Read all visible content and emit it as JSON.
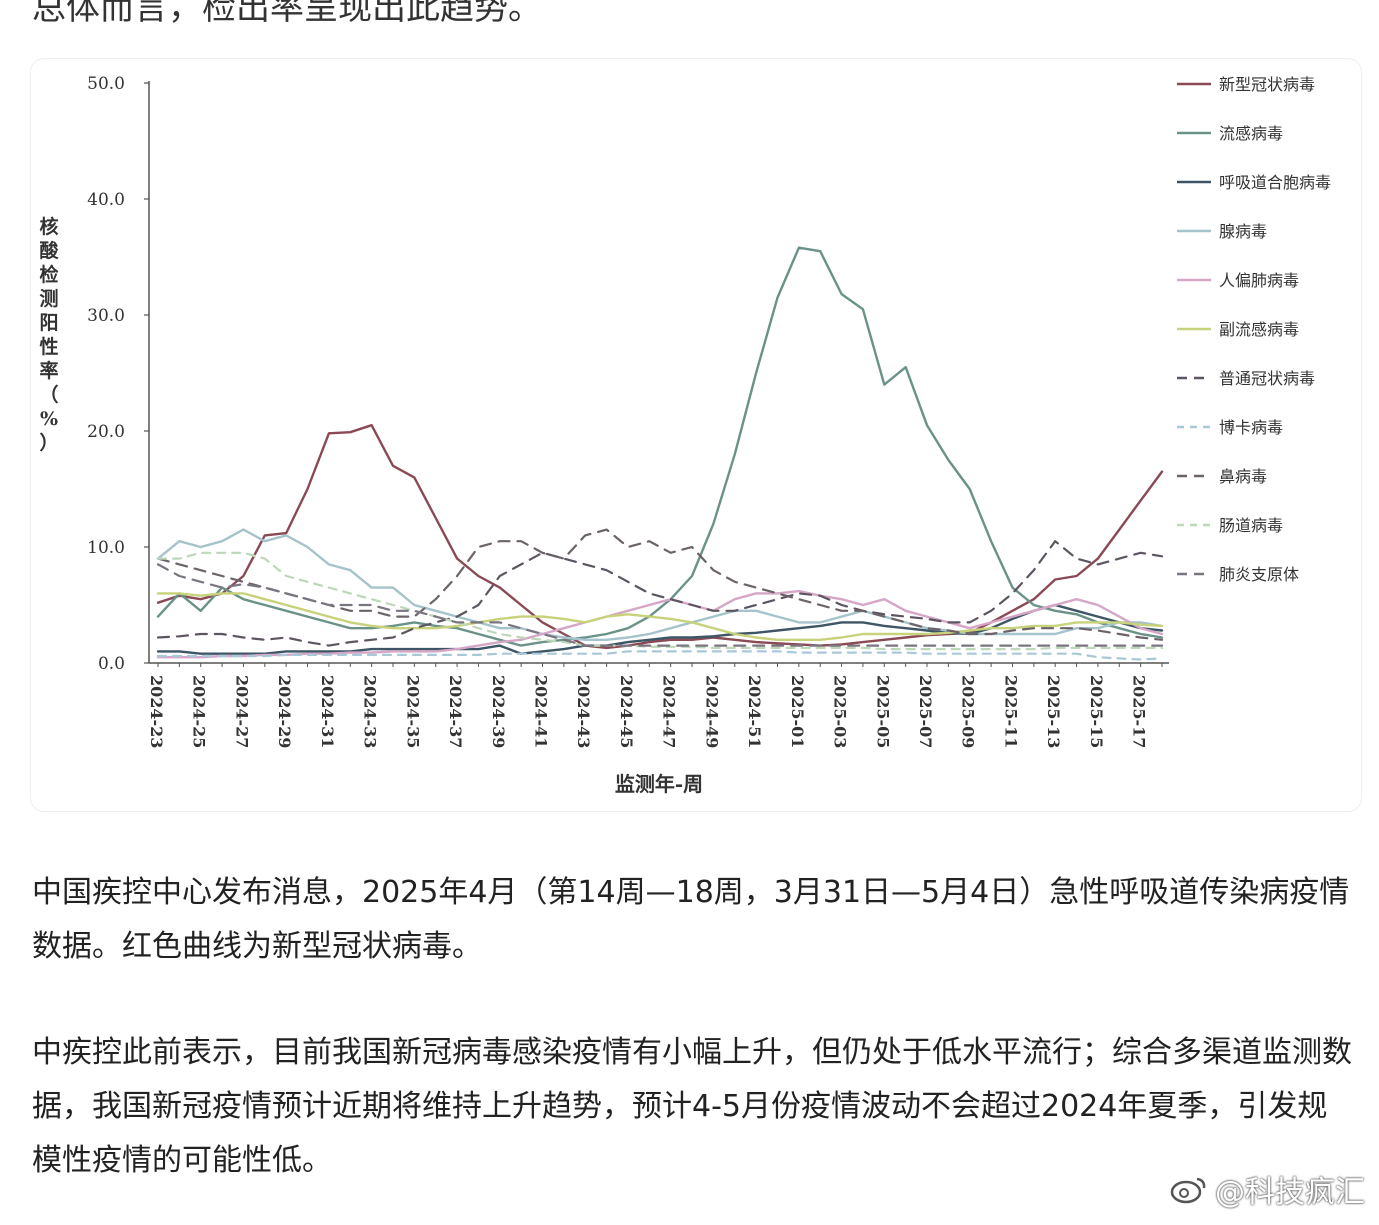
{
  "top_clipped_text": "总体而言，检出率呈现出此趋势。",
  "chart_data": {
    "type": "line",
    "title": "",
    "xlabel": "监测年-周",
    "ylabel": "核酸检测阳性率（%）",
    "ylim": [
      0,
      50
    ],
    "yticks": [
      "0.0",
      "10.0",
      "20.0",
      "30.0",
      "40.0",
      "50.0"
    ],
    "x_tick_labels": [
      "2024-23",
      "2024-25",
      "2024-27",
      "2024-29",
      "2024-31",
      "2024-33",
      "2024-35",
      "2024-37",
      "2024-39",
      "2024-41",
      "2024-43",
      "2024-45",
      "2024-47",
      "2024-49",
      "2024-51",
      "2025-01",
      "2025-03",
      "2025-05",
      "2025-07",
      "2025-09",
      "2025-11",
      "2025-13",
      "2025-15",
      "2025-17"
    ],
    "legend_position": "right",
    "weeks": [
      "2024-23",
      "2024-24",
      "2024-25",
      "2024-26",
      "2024-27",
      "2024-28",
      "2024-29",
      "2024-30",
      "2024-31",
      "2024-32",
      "2024-33",
      "2024-34",
      "2024-35",
      "2024-36",
      "2024-37",
      "2024-38",
      "2024-39",
      "2024-40",
      "2024-41",
      "2024-42",
      "2024-43",
      "2024-44",
      "2024-45",
      "2024-46",
      "2024-47",
      "2024-48",
      "2024-49",
      "2024-50",
      "2024-51",
      "2024-52",
      "2025-01",
      "2025-02",
      "2025-03",
      "2025-04",
      "2025-05",
      "2025-06",
      "2025-07",
      "2025-08",
      "2025-09",
      "2025-10",
      "2025-11",
      "2025-12",
      "2025-13",
      "2025-14",
      "2025-15",
      "2025-16",
      "2025-17",
      "2025-18"
    ],
    "series": [
      {
        "name": "新型冠状病毒",
        "color": "#8a4a55",
        "dash": "solid",
        "values": [
          5.2,
          5.8,
          5.5,
          6.0,
          7.5,
          11.0,
          11.2,
          15.0,
          19.8,
          19.9,
          20.5,
          17.0,
          16.0,
          12.5,
          9.0,
          7.5,
          6.5,
          5.0,
          3.5,
          2.5,
          1.5,
          1.3,
          1.5,
          1.8,
          2.0,
          2.0,
          2.2,
          2.0,
          1.8,
          1.7,
          1.6,
          1.5,
          1.6,
          1.8,
          2.0,
          2.2,
          2.4,
          2.5,
          2.6,
          3.5,
          4.5,
          5.5,
          7.2,
          7.5,
          9.0,
          11.5,
          14.0,
          16.5
        ]
      },
      {
        "name": "流感病毒",
        "color": "#6a9288",
        "dash": "solid",
        "values": [
          4.0,
          6.0,
          4.5,
          6.5,
          5.5,
          5.0,
          4.5,
          4.0,
          3.5,
          3.0,
          3.0,
          3.2,
          3.5,
          3.2,
          3.0,
          2.5,
          2.0,
          1.5,
          1.8,
          2.0,
          2.2,
          2.5,
          3.0,
          4.0,
          5.5,
          7.5,
          12.0,
          18.0,
          25.0,
          31.5,
          35.8,
          35.5,
          31.8,
          30.5,
          24.0,
          25.5,
          20.5,
          17.5,
          15.0,
          10.5,
          6.5,
          5.0,
          4.5,
          4.2,
          3.5,
          3.0,
          2.5,
          2.2
        ]
      },
      {
        "name": "呼吸道合胞病毒",
        "color": "#3e5566",
        "dash": "solid",
        "values": [
          1.0,
          1.0,
          0.8,
          0.8,
          0.8,
          0.8,
          1.0,
          1.0,
          1.0,
          1.0,
          1.2,
          1.2,
          1.2,
          1.2,
          1.2,
          1.2,
          1.5,
          0.8,
          1.0,
          1.2,
          1.5,
          1.5,
          1.8,
          2.0,
          2.2,
          2.2,
          2.3,
          2.5,
          2.6,
          2.8,
          3.0,
          3.2,
          3.5,
          3.5,
          3.2,
          3.0,
          2.8,
          2.6,
          2.5,
          3.0,
          3.8,
          4.5,
          5.0,
          4.5,
          4.0,
          3.5,
          3.0,
          2.8
        ]
      },
      {
        "name": "腺病毒",
        "color": "#a5c3cb",
        "dash": "solid",
        "values": [
          9.0,
          10.5,
          10.0,
          10.5,
          11.5,
          10.5,
          11.0,
          10.0,
          8.5,
          8.0,
          6.5,
          6.5,
          5.0,
          4.5,
          4.0,
          3.5,
          3.0,
          3.0,
          2.5,
          2.2,
          2.0,
          2.0,
          2.2,
          2.5,
          3.0,
          3.5,
          4.0,
          4.5,
          4.5,
          4.0,
          3.5,
          3.5,
          4.0,
          4.5,
          4.0,
          3.5,
          3.0,
          2.8,
          2.5,
          2.5,
          2.5,
          2.5,
          2.5,
          3.0,
          3.0,
          3.5,
          3.5,
          3.2
        ]
      },
      {
        "name": "人偏肺病毒",
        "color": "#d6a6c6",
        "dash": "solid",
        "values": [
          0.5,
          0.5,
          0.5,
          0.6,
          0.6,
          0.7,
          0.7,
          0.8,
          0.8,
          0.9,
          0.9,
          1.0,
          1.0,
          1.0,
          1.2,
          1.5,
          1.8,
          2.0,
          2.5,
          3.0,
          3.5,
          4.0,
          4.5,
          5.0,
          5.5,
          5.0,
          4.5,
          5.5,
          6.0,
          6.0,
          6.2,
          5.8,
          5.5,
          5.0,
          5.5,
          4.5,
          4.0,
          3.5,
          3.0,
          3.5,
          4.0,
          4.5,
          5.0,
          5.5,
          5.0,
          4.0,
          3.0,
          2.5
        ]
      },
      {
        "name": "副流感病毒",
        "color": "#c8d27a",
        "dash": "solid",
        "values": [
          6.0,
          6.0,
          5.8,
          6.0,
          6.0,
          5.5,
          5.0,
          4.5,
          4.0,
          3.5,
          3.2,
          3.0,
          3.0,
          3.0,
          3.2,
          3.5,
          3.8,
          4.0,
          4.0,
          3.8,
          3.5,
          4.0,
          4.2,
          4.0,
          3.8,
          3.5,
          3.0,
          2.5,
          2.2,
          2.0,
          2.0,
          2.0,
          2.2,
          2.5,
          2.5,
          2.5,
          2.5,
          2.6,
          2.8,
          3.0,
          3.0,
          3.2,
          3.2,
          3.5,
          3.5,
          3.5,
          3.3,
          3.2
        ]
      },
      {
        "name": "普通冠状病毒",
        "color": "#5e5562",
        "dash": "long",
        "values": [
          2.2,
          2.3,
          2.5,
          2.5,
          2.2,
          2.0,
          2.2,
          1.8,
          1.5,
          1.8,
          2.0,
          2.2,
          3.0,
          3.5,
          4.0,
          5.0,
          7.5,
          8.5,
          9.5,
          9.0,
          8.5,
          8.0,
          7.0,
          6.0,
          5.5,
          5.0,
          4.5,
          4.5,
          5.0,
          5.5,
          6.0,
          5.8,
          5.0,
          4.5,
          4.2,
          4.0,
          3.8,
          3.5,
          3.5,
          4.5,
          6.0,
          8.0,
          10.5,
          9.0,
          8.5,
          9.0,
          9.5,
          9.2
        ]
      },
      {
        "name": "博卡病毒",
        "color": "#a8c8d8",
        "dash": "short",
        "values": [
          0.6,
          0.6,
          0.6,
          0.6,
          0.6,
          0.6,
          0.7,
          0.7,
          0.7,
          0.7,
          0.7,
          0.7,
          0.7,
          0.7,
          0.7,
          0.7,
          0.8,
          0.8,
          0.8,
          0.8,
          0.8,
          0.8,
          1.0,
          1.0,
          1.0,
          1.0,
          1.0,
          1.0,
          1.0,
          1.0,
          0.9,
          0.9,
          0.9,
          0.9,
          0.9,
          0.9,
          0.8,
          0.8,
          0.8,
          0.8,
          0.8,
          0.8,
          0.8,
          0.8,
          0.5,
          0.4,
          0.3,
          0.4
        ]
      },
      {
        "name": "鼻病毒",
        "color": "#6b6368",
        "dash": "long",
        "values": [
          9.0,
          8.5,
          8.0,
          7.5,
          7.0,
          6.5,
          6.0,
          5.5,
          5.0,
          4.5,
          4.5,
          4.0,
          4.0,
          5.5,
          7.5,
          10.0,
          10.5,
          10.5,
          9.5,
          9.0,
          11.0,
          11.5,
          10.0,
          10.5,
          9.5,
          10.0,
          8.0,
          7.0,
          6.5,
          6.0,
          5.5,
          5.0,
          4.5,
          4.5,
          4.0,
          3.5,
          3.0,
          2.8,
          2.5,
          2.5,
          2.8,
          3.0,
          3.0,
          3.0,
          2.8,
          2.5,
          2.2,
          2.0
        ]
      },
      {
        "name": "肠道病毒",
        "color": "#bcd8b8",
        "dash": "short",
        "values": [
          9.0,
          9.0,
          9.5,
          9.5,
          9.5,
          9.0,
          7.5,
          7.0,
          6.5,
          6.0,
          5.5,
          5.0,
          4.5,
          4.0,
          3.5,
          3.0,
          2.5,
          2.2,
          2.0,
          1.8,
          1.5,
          1.5,
          1.5,
          1.4,
          1.4,
          1.4,
          1.3,
          1.3,
          1.3,
          1.3,
          1.3,
          1.3,
          1.3,
          1.3,
          1.2,
          1.2,
          1.2,
          1.2,
          1.2,
          1.2,
          1.2,
          1.2,
          1.3,
          1.3,
          1.3,
          1.3,
          1.3,
          1.3
        ]
      },
      {
        "name": "肺炎支原体",
        "color": "#7a7580",
        "dash": "long",
        "values": [
          8.5,
          7.5,
          7.0,
          6.5,
          6.8,
          6.5,
          6.0,
          5.5,
          5.0,
          5.0,
          5.0,
          4.5,
          4.5,
          4.0,
          3.5,
          3.5,
          3.5,
          3.0,
          2.5,
          2.0,
          1.5,
          1.5,
          1.5,
          1.5,
          1.5,
          1.5,
          1.5,
          1.5,
          1.5,
          1.5,
          1.5,
          1.5,
          1.5,
          1.5,
          1.5,
          1.5,
          1.5,
          1.5,
          1.5,
          1.5,
          1.5,
          1.5,
          1.5,
          1.5,
          1.5,
          1.5,
          1.5,
          1.5
        ]
      }
    ]
  },
  "paragraphs": [
    "中国疾控中心发布消息，2025年4月（第14周—18周，3月31日—5月4日）急性呼吸道传染病疫情数据。红色曲线为新型冠状病毒。",
    "中疾控此前表示，目前我国新冠病毒感染疫情有小幅上升，但仍处于低水平流行；综合多渠道监测数据，我国新冠疫情预计近期将维持上升趋势，预计4-5月份疫情波动不会超过2024年夏季，引发规模性疫情的可能性低。"
  ],
  "watermark": "@科技疯汇"
}
